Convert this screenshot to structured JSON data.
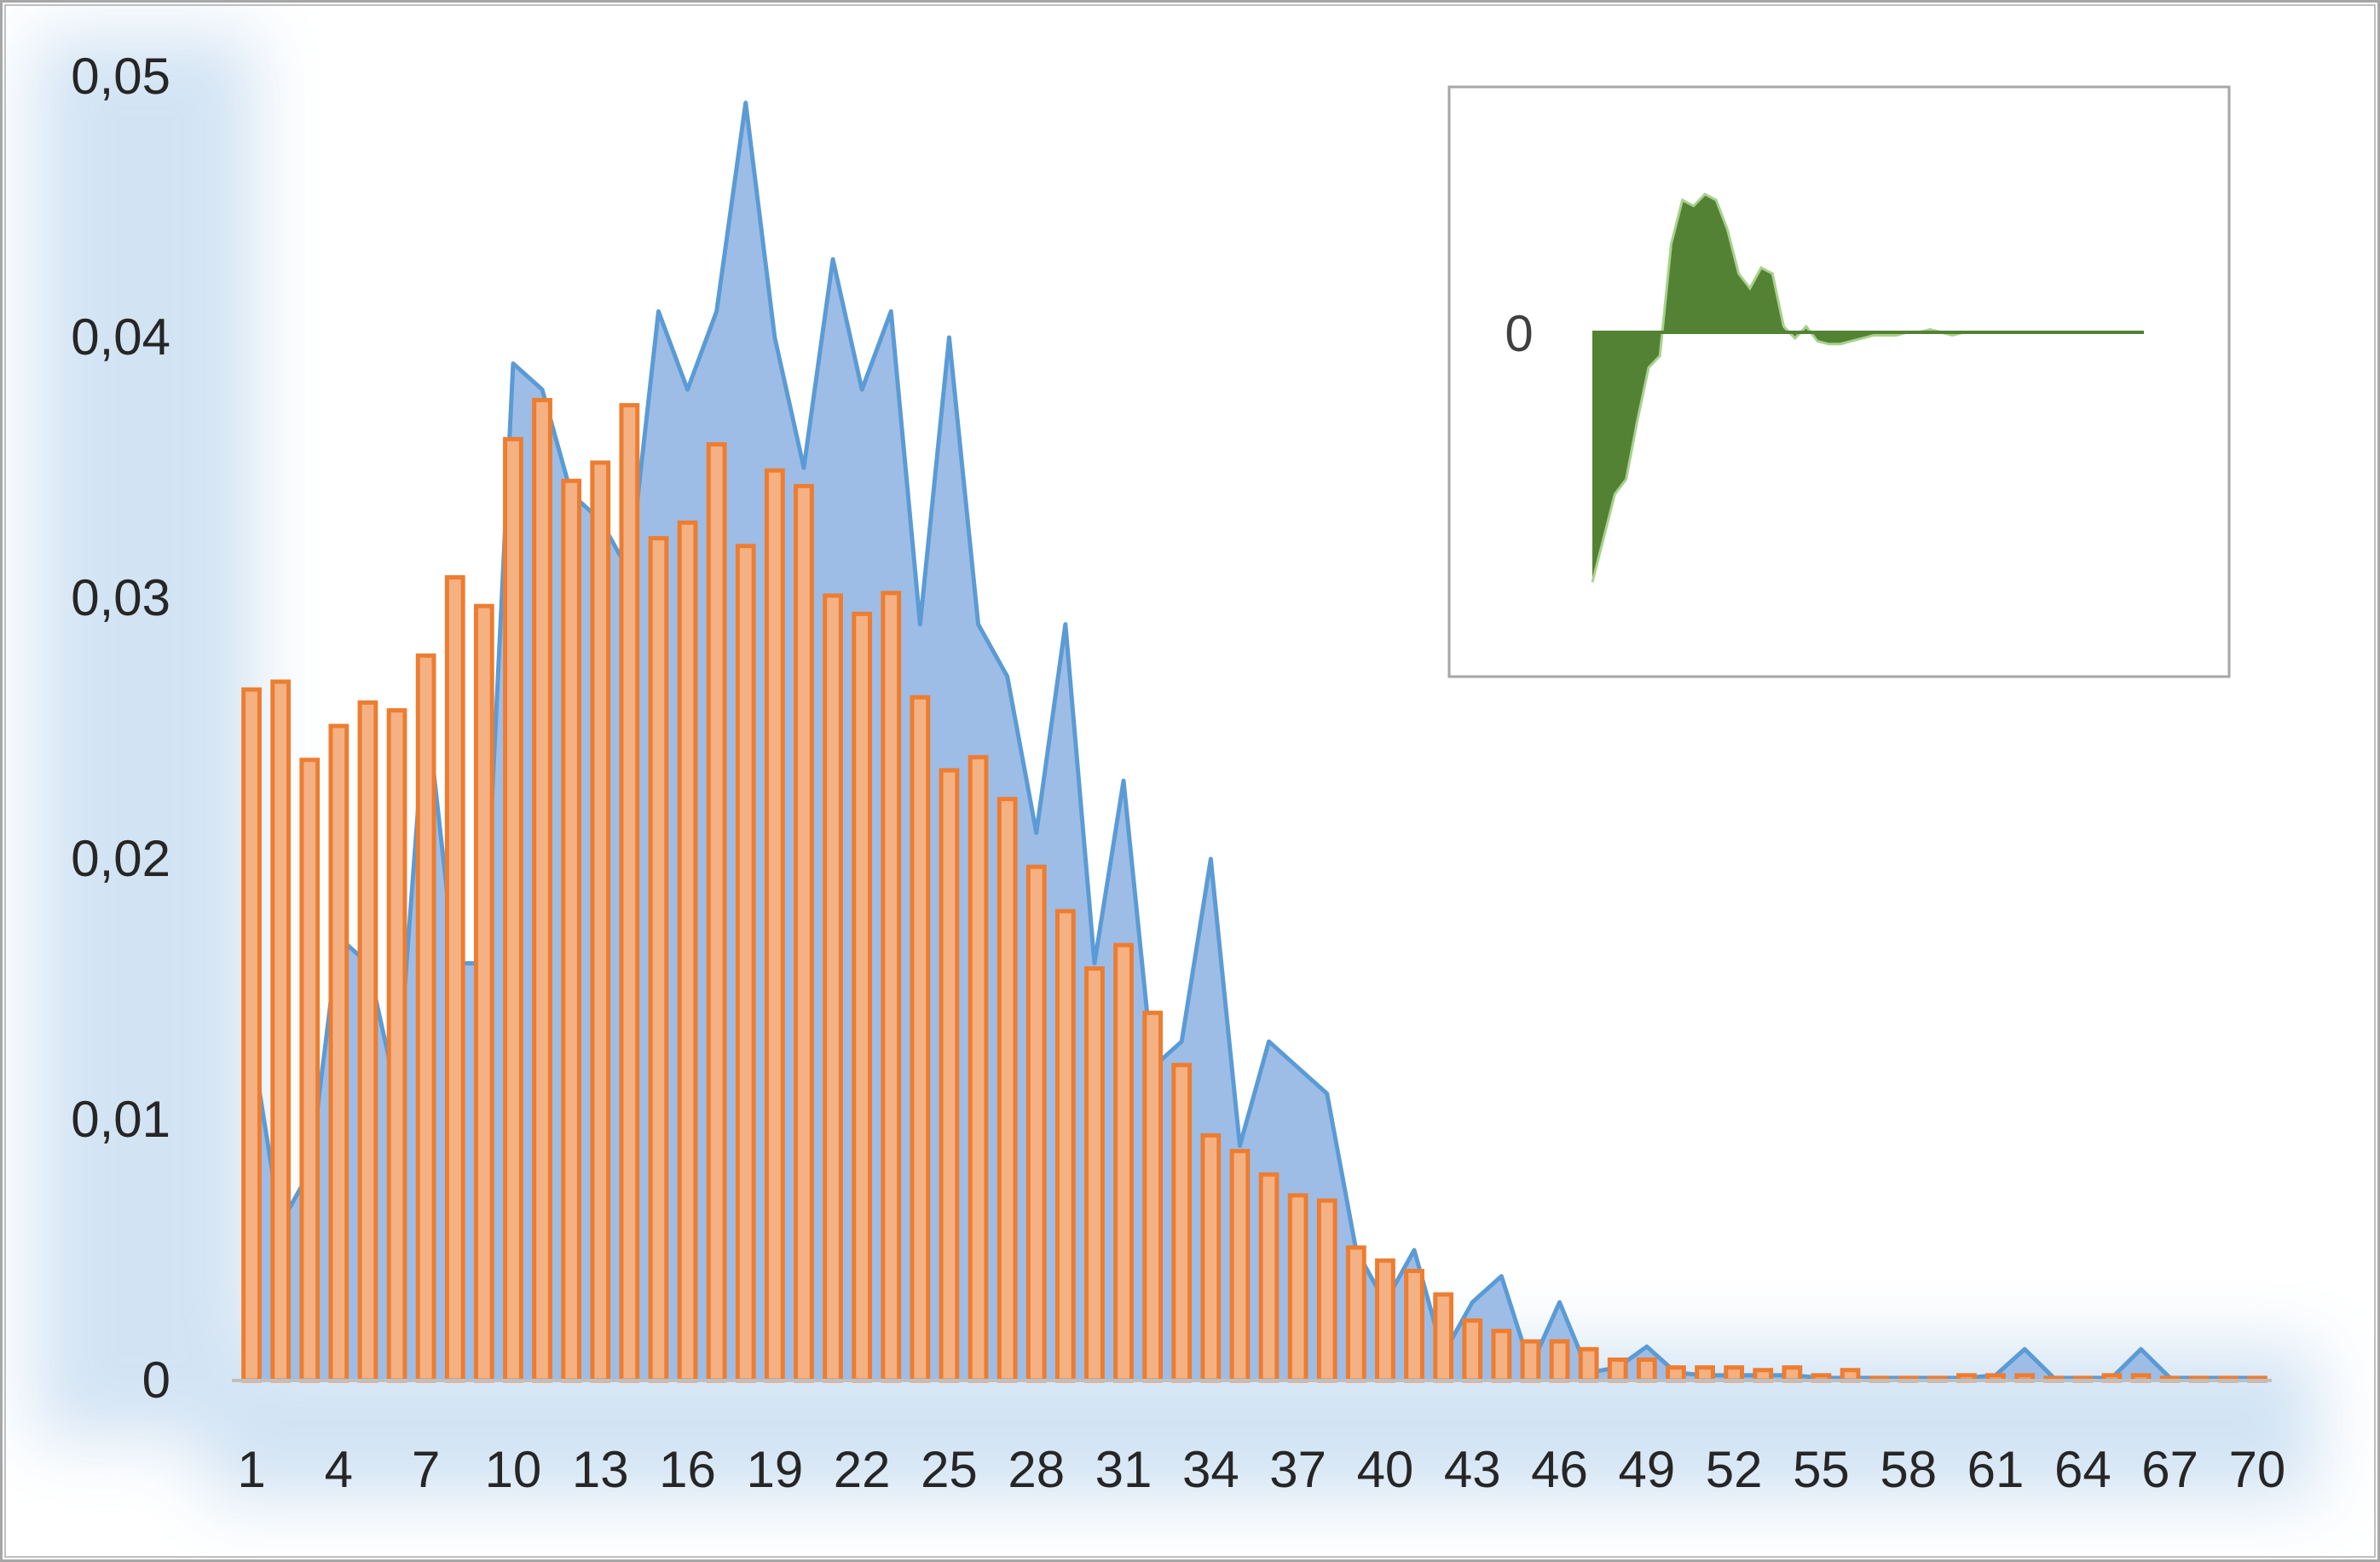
{
  "chart_data": [
    {
      "type": "bar",
      "title": "",
      "xlabel": "",
      "ylabel": "",
      "ylim": [
        0,
        0.05
      ],
      "yticks": [
        "0",
        "0,01",
        "0,02",
        "0,03",
        "0,04",
        "0,05"
      ],
      "xtick_labels": [
        "1",
        "4",
        "7",
        "10",
        "13",
        "16",
        "19",
        "22",
        "25",
        "28",
        "31",
        "34",
        "37",
        "40",
        "43",
        "46",
        "49",
        "52",
        "55",
        "58",
        "61",
        "64",
        "67",
        "70"
      ],
      "x": [
        1,
        2,
        3,
        4,
        5,
        6,
        7,
        8,
        9,
        10,
        11,
        12,
        13,
        14,
        15,
        16,
        17,
        18,
        19,
        20,
        21,
        22,
        23,
        24,
        25,
        26,
        27,
        28,
        29,
        30,
        31,
        32,
        33,
        34,
        35,
        36,
        37,
        38,
        39,
        40,
        41,
        42,
        43,
        44,
        45,
        46,
        47,
        48,
        49,
        50,
        51,
        52,
        53,
        54,
        55,
        56,
        57,
        58,
        59,
        60,
        61,
        62,
        63,
        64,
        65,
        66,
        67,
        68,
        69,
        70
      ],
      "grid": false,
      "legend": "none",
      "series": [
        {
          "type": "area",
          "color": "#5b9bd5",
          "fill": "#9dbde6",
          "values": [
            0.013,
            0.006,
            0.008,
            0.017,
            0.016,
            0.011,
            0.026,
            0.016,
            0.016,
            0.039,
            0.038,
            0.034,
            0.033,
            0.031,
            0.041,
            0.038,
            0.041,
            0.049,
            0.04,
            0.035,
            0.043,
            0.038,
            0.041,
            0.029,
            0.04,
            0.029,
            0.027,
            0.021,
            0.029,
            0.016,
            0.023,
            0.012,
            0.013,
            0.02,
            0.009,
            0.013,
            0.012,
            0.011,
            0.005,
            0.003,
            0.005,
            0.001,
            0.003,
            0.004,
            0.0005,
            0.003,
            0.0003,
            0.0005,
            0.0013,
            0.0003,
            0.0002,
            0.0002,
            0.0002,
            0.0002,
            0.0001,
            0.0001,
            0.0001,
            0.0001,
            0.0001,
            0.0001,
            0.0002,
            0.0012,
            0.0001,
            0.0001,
            0.0001,
            0.0012,
            0.0001,
            0.0001,
            0.0001,
            0.0001
          ]
        },
        {
          "type": "bar",
          "color": "#ed7d31",
          "fill": "#f4b183",
          "values": [
            0.0265,
            0.0268,
            0.0238,
            0.0251,
            0.026,
            0.0257,
            0.0278,
            0.0308,
            0.0297,
            0.0361,
            0.0376,
            0.0345,
            0.0352,
            0.0374,
            0.0323,
            0.0329,
            0.0359,
            0.032,
            0.0349,
            0.0343,
            0.0301,
            0.0294,
            0.0302,
            0.0262,
            0.0234,
            0.0239,
            0.0223,
            0.0197,
            0.018,
            0.0158,
            0.0167,
            0.0141,
            0.0121,
            0.0094,
            0.0088,
            0.0079,
            0.0071,
            0.0069,
            0.0051,
            0.0046,
            0.0042,
            0.0033,
            0.0023,
            0.0019,
            0.0015,
            0.0015,
            0.0012,
            0.0008,
            0.0008,
            0.0005,
            0.0005,
            0.0005,
            0.0004,
            0.0005,
            0.0002,
            0.0004,
            0.0001,
            0.0001,
            0.0001,
            0.0002,
            0.0002,
            0.0002,
            0.0001,
            0.0001,
            0.0002,
            0.0002,
            0.0001,
            0.0001,
            0.0001,
            0.0001
          ]
        }
      ]
    },
    {
      "type": "area",
      "title": "",
      "ytick_label": "0",
      "color": "#548235",
      "values": [
        -0.85,
        -0.7,
        -0.55,
        -0.5,
        -0.3,
        -0.12,
        -0.08,
        0.3,
        0.45,
        0.43,
        0.47,
        0.45,
        0.35,
        0.2,
        0.15,
        0.22,
        0.2,
        0.02,
        -0.02,
        0.02,
        -0.03,
        -0.04,
        -0.04,
        -0.03,
        -0.02,
        -0.01,
        -0.01,
        -0.01,
        0.0,
        0.0,
        0.01,
        0.0,
        -0.01,
        0.0,
        0.0,
        0.0,
        0.0,
        0.0,
        0.0,
        0.0,
        0.0,
        0.0,
        0.0,
        0.0,
        0.0,
        0.0,
        0.0,
        0.0,
        0.0,
        0.0
      ]
    }
  ]
}
